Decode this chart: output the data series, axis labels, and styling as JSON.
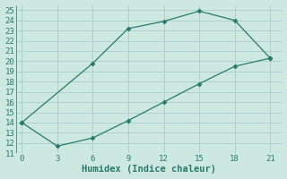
{
  "line1_x": [
    0,
    6,
    9,
    12,
    15,
    18,
    21
  ],
  "line1_y": [
    14,
    19.8,
    23.2,
    23.9,
    24.9,
    24.0,
    20.3
  ],
  "line2_x": [
    0,
    3,
    6,
    9,
    12,
    15,
    18,
    21
  ],
  "line2_y": [
    14,
    11.7,
    12.5,
    14.2,
    16.0,
    17.8,
    19.5,
    20.3
  ],
  "line_color": "#2a7a6a",
  "marker": "D",
  "marker_size": 2.5,
  "linewidth": 0.9,
  "xlabel": "Humidex (Indice chaleur)",
  "xlabel_fontsize": 7.5,
  "xlim": [
    -0.5,
    22
  ],
  "ylim": [
    11,
    25.5
  ],
  "xticks": [
    0,
    3,
    6,
    9,
    12,
    15,
    18,
    21
  ],
  "yticks": [
    11,
    12,
    13,
    14,
    15,
    16,
    17,
    18,
    19,
    20,
    21,
    22,
    23,
    24,
    25
  ],
  "background_color": "#cce8e0",
  "grid_color": "#aacccc",
  "tick_fontsize": 6.5
}
